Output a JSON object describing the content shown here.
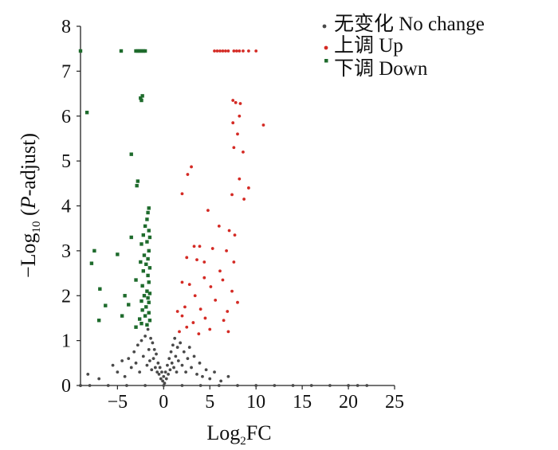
{
  "chart_data": {
    "type": "scatter",
    "xlabel": {
      "pre": "Log",
      "sub": "2",
      "post": "FC"
    },
    "ylabel": {
      "pre": "−Log",
      "sub": "10",
      "mid": " (",
      "ital": "P",
      "post": "-adjust)"
    },
    "xlim": [
      -9,
      25
    ],
    "ylim": [
      0,
      8
    ],
    "x_ticks": [
      "−5",
      "0",
      "5",
      "10",
      "15",
      "20",
      "25"
    ],
    "x_tick_values": [
      -5,
      0,
      5,
      10,
      15,
      20,
      25
    ],
    "y_ticks": [
      "0",
      "1",
      "2",
      "3",
      "4",
      "5",
      "6",
      "7",
      "8"
    ],
    "y_tick_values": [
      0,
      1,
      2,
      3,
      4,
      5,
      6,
      7,
      8
    ],
    "legend_position": "top-right",
    "series": [
      {
        "name": "无变化 No change",
        "color": "#4a4a4a",
        "marker": "circle",
        "points": [
          [
            -9.0,
            0.0
          ],
          [
            -8.2,
            0.25
          ],
          [
            -7.0,
            0.15
          ],
          [
            -5.5,
            0.45
          ],
          [
            -5.0,
            0.3
          ],
          [
            -4.5,
            0.55
          ],
          [
            -4.2,
            0.2
          ],
          [
            -3.8,
            0.6
          ],
          [
            -3.5,
            0.4
          ],
          [
            -3.2,
            0.75
          ],
          [
            -3.0,
            0.5
          ],
          [
            -2.8,
            0.9
          ],
          [
            -2.6,
            0.3
          ],
          [
            -2.4,
            1.0
          ],
          [
            -2.2,
            0.65
          ],
          [
            -2.0,
            1.1
          ],
          [
            -1.8,
            0.45
          ],
          [
            -1.7,
            1.25
          ],
          [
            -1.6,
            0.8
          ],
          [
            -1.5,
            0.55
          ],
          [
            -1.4,
            1.05
          ],
          [
            -1.3,
            0.35
          ],
          [
            -1.2,
            0.95
          ],
          [
            -1.1,
            0.6
          ],
          [
            -1.0,
            0.8
          ],
          [
            -0.9,
            0.4
          ],
          [
            -0.8,
            0.7
          ],
          [
            -0.7,
            0.3
          ],
          [
            -0.6,
            0.5
          ],
          [
            -0.5,
            0.25
          ],
          [
            -0.4,
            0.4
          ],
          [
            -0.3,
            0.15
          ],
          [
            -0.2,
            0.3
          ],
          [
            -0.1,
            0.1
          ],
          [
            0.0,
            0.2
          ],
          [
            0.1,
            0.05
          ],
          [
            0.2,
            0.3
          ],
          [
            0.3,
            0.15
          ],
          [
            0.4,
            0.45
          ],
          [
            0.5,
            0.25
          ],
          [
            0.6,
            0.6
          ],
          [
            0.7,
            0.35
          ],
          [
            0.8,
            0.75
          ],
          [
            0.9,
            0.5
          ],
          [
            1.0,
            0.9
          ],
          [
            1.1,
            0.4
          ],
          [
            1.2,
            1.05
          ],
          [
            1.3,
            0.65
          ],
          [
            1.4,
            0.3
          ],
          [
            1.5,
            0.85
          ],
          [
            1.6,
            0.55
          ],
          [
            1.8,
            0.95
          ],
          [
            2.0,
            0.45
          ],
          [
            2.2,
            0.75
          ],
          [
            2.4,
            0.3
          ],
          [
            2.6,
            0.6
          ],
          [
            2.8,
            0.85
          ],
          [
            3.0,
            0.4
          ],
          [
            3.3,
            0.65
          ],
          [
            3.6,
            0.25
          ],
          [
            3.9,
            0.5
          ],
          [
            4.2,
            0.2
          ],
          [
            4.6,
            0.35
          ],
          [
            5.0,
            0.15
          ],
          [
            5.5,
            0.3
          ],
          [
            6.2,
            0.1
          ],
          [
            7.0,
            0.2
          ],
          [
            -9.0,
            0.0
          ],
          [
            -8.0,
            0.0
          ],
          [
            -6.0,
            0.0
          ],
          [
            -4.0,
            0.0
          ],
          [
            -2.0,
            0.0
          ],
          [
            0.0,
            0.0
          ],
          [
            2.0,
            0.0
          ],
          [
            4.0,
            0.0
          ],
          [
            6.0,
            0.0
          ],
          [
            8.0,
            0.0
          ],
          [
            10.0,
            0.0
          ],
          [
            12.0,
            0.0
          ],
          [
            14.0,
            0.0
          ],
          [
            16.0,
            0.0
          ],
          [
            18.0,
            0.0
          ],
          [
            20.0,
            0.0
          ],
          [
            21.0,
            0.0
          ],
          [
            22.0,
            0.0
          ]
        ]
      },
      {
        "name": "上调 Up",
        "color": "#d42a24",
        "marker": "circle",
        "points": [
          [
            5.5,
            7.45
          ],
          [
            5.8,
            7.45
          ],
          [
            6.1,
            7.45
          ],
          [
            6.4,
            7.45
          ],
          [
            6.7,
            7.45
          ],
          [
            7.0,
            7.45
          ],
          [
            7.6,
            7.45
          ],
          [
            7.9,
            7.45
          ],
          [
            8.2,
            7.45
          ],
          [
            8.6,
            7.45
          ],
          [
            9.2,
            7.45
          ],
          [
            10.0,
            7.45
          ],
          [
            7.5,
            6.35
          ],
          [
            7.8,
            6.3
          ],
          [
            8.3,
            6.28
          ],
          [
            8.2,
            6.0
          ],
          [
            7.5,
            5.85
          ],
          [
            10.8,
            5.8
          ],
          [
            8.0,
            5.6
          ],
          [
            7.6,
            5.3
          ],
          [
            8.6,
            5.2
          ],
          [
            3.0,
            4.87
          ],
          [
            2.6,
            4.7
          ],
          [
            8.2,
            4.6
          ],
          [
            9.2,
            4.4
          ],
          [
            2.0,
            4.27
          ],
          [
            7.4,
            4.25
          ],
          [
            8.7,
            4.15
          ],
          [
            4.8,
            3.9
          ],
          [
            6.0,
            3.55
          ],
          [
            7.1,
            3.45
          ],
          [
            7.7,
            3.35
          ],
          [
            3.3,
            3.1
          ],
          [
            3.9,
            3.1
          ],
          [
            5.3,
            3.05
          ],
          [
            6.8,
            3.0
          ],
          [
            2.5,
            2.85
          ],
          [
            3.6,
            2.8
          ],
          [
            4.4,
            2.75
          ],
          [
            7.6,
            2.75
          ],
          [
            6.1,
            2.55
          ],
          [
            4.4,
            2.4
          ],
          [
            6.4,
            2.35
          ],
          [
            2.0,
            2.3
          ],
          [
            2.8,
            2.25
          ],
          [
            5.1,
            2.2
          ],
          [
            7.4,
            2.1
          ],
          [
            3.4,
            2.0
          ],
          [
            5.6,
            1.9
          ],
          [
            8.0,
            1.85
          ],
          [
            2.3,
            1.75
          ],
          [
            4.0,
            1.7
          ],
          [
            6.9,
            1.65
          ],
          [
            1.5,
            1.65
          ],
          [
            2.0,
            1.55
          ],
          [
            4.5,
            1.5
          ],
          [
            6.5,
            1.45
          ],
          [
            3.2,
            1.4
          ],
          [
            2.5,
            1.3
          ],
          [
            5.0,
            1.25
          ],
          [
            1.7,
            1.2
          ],
          [
            7.0,
            1.2
          ],
          [
            3.8,
            1.15
          ]
        ]
      },
      {
        "name": "下调 Down",
        "color": "#1e6b2c",
        "marker": "square",
        "points": [
          [
            -9.0,
            7.45
          ],
          [
            -4.6,
            7.45
          ],
          [
            -3.0,
            7.45
          ],
          [
            -2.8,
            7.45
          ],
          [
            -2.6,
            7.45
          ],
          [
            -2.4,
            7.45
          ],
          [
            -2.2,
            7.45
          ],
          [
            -2.0,
            7.45
          ],
          [
            -2.3,
            6.45
          ],
          [
            -2.5,
            6.4
          ],
          [
            -2.4,
            6.35
          ],
          [
            -8.3,
            6.08
          ],
          [
            -3.5,
            5.15
          ],
          [
            -2.8,
            4.55
          ],
          [
            -2.9,
            4.45
          ],
          [
            -1.6,
            3.95
          ],
          [
            -1.7,
            3.85
          ],
          [
            -1.8,
            3.7
          ],
          [
            -2.0,
            3.55
          ],
          [
            -1.6,
            3.45
          ],
          [
            -2.2,
            3.35
          ],
          [
            -1.5,
            3.3
          ],
          [
            -3.5,
            3.3
          ],
          [
            -1.8,
            3.2
          ],
          [
            -2.4,
            3.15
          ],
          [
            -7.5,
            3.0
          ],
          [
            -1.6,
            3.0
          ],
          [
            -5.0,
            2.92
          ],
          [
            -2.1,
            2.9
          ],
          [
            -1.7,
            2.82
          ],
          [
            -2.5,
            2.75
          ],
          [
            -7.8,
            2.72
          ],
          [
            -1.9,
            2.7
          ],
          [
            -1.5,
            2.62
          ],
          [
            -2.2,
            2.55
          ],
          [
            -1.7,
            2.45
          ],
          [
            -3.0,
            2.35
          ],
          [
            -1.6,
            2.3
          ],
          [
            -2.3,
            2.22
          ],
          [
            -6.9,
            2.15
          ],
          [
            -1.8,
            2.1
          ],
          [
            -1.5,
            2.05
          ],
          [
            -2.1,
            2.0
          ],
          [
            -4.2,
            2.0
          ],
          [
            -1.7,
            1.95
          ],
          [
            -2.4,
            1.88
          ],
          [
            -1.6,
            1.85
          ],
          [
            -3.8,
            1.8
          ],
          [
            -1.9,
            1.75
          ],
          [
            -6.3,
            1.78
          ],
          [
            -2.3,
            1.68
          ],
          [
            -1.6,
            1.62
          ],
          [
            -4.5,
            1.55
          ],
          [
            -2.0,
            1.55
          ],
          [
            -2.6,
            1.48
          ],
          [
            -7.0,
            1.45
          ],
          [
            -1.5,
            1.45
          ],
          [
            -2.4,
            1.38
          ],
          [
            -1.8,
            1.35
          ],
          [
            -3.0,
            1.3
          ]
        ]
      }
    ]
  }
}
